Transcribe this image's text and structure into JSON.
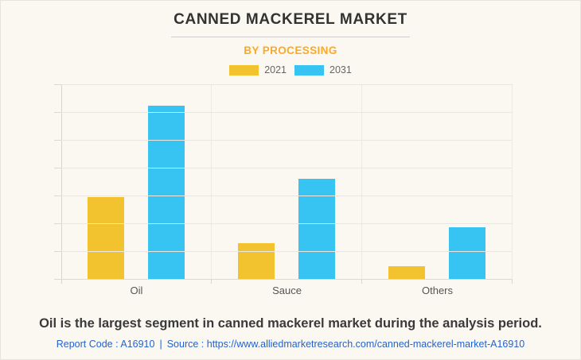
{
  "header": {
    "title": "CANNED MACKEREL MARKET",
    "subtitle": "BY PROCESSING"
  },
  "chart_data": {
    "type": "bar",
    "title": "CANNED MACKEREL MARKET",
    "subtitle": "BY PROCESSING",
    "categories": [
      "Oil",
      "Sauce",
      "Others"
    ],
    "series": [
      {
        "name": "2021",
        "color": "#F2C32F",
        "values": [
          2.94,
          1.29,
          0.46
        ]
      },
      {
        "name": "2031",
        "color": "#37C4F3",
        "values": [
          6.23,
          3.6,
          1.86
        ]
      }
    ],
    "xlabel": "",
    "ylabel": "",
    "ylim": [
      0,
      7
    ],
    "grid": true,
    "gridline_count": 8,
    "legend_position": "top",
    "y_tick_labels_visible": false
  },
  "colors": {
    "background": "#FAF8F1",
    "accent_orange": "#FCA928",
    "series_2021": "#F2C32F",
    "series_2031": "#37C4F3",
    "link_blue": "#2463CE"
  },
  "footer": {
    "insight": "Oil is the largest segment in canned mackerel market during the analysis period.",
    "report_code": "Report Code : A16910",
    "separator": "|",
    "source_label": "Source :",
    "source_url": "https://www.alliedmarketresearch.com/canned-mackerel-market-A16910"
  }
}
